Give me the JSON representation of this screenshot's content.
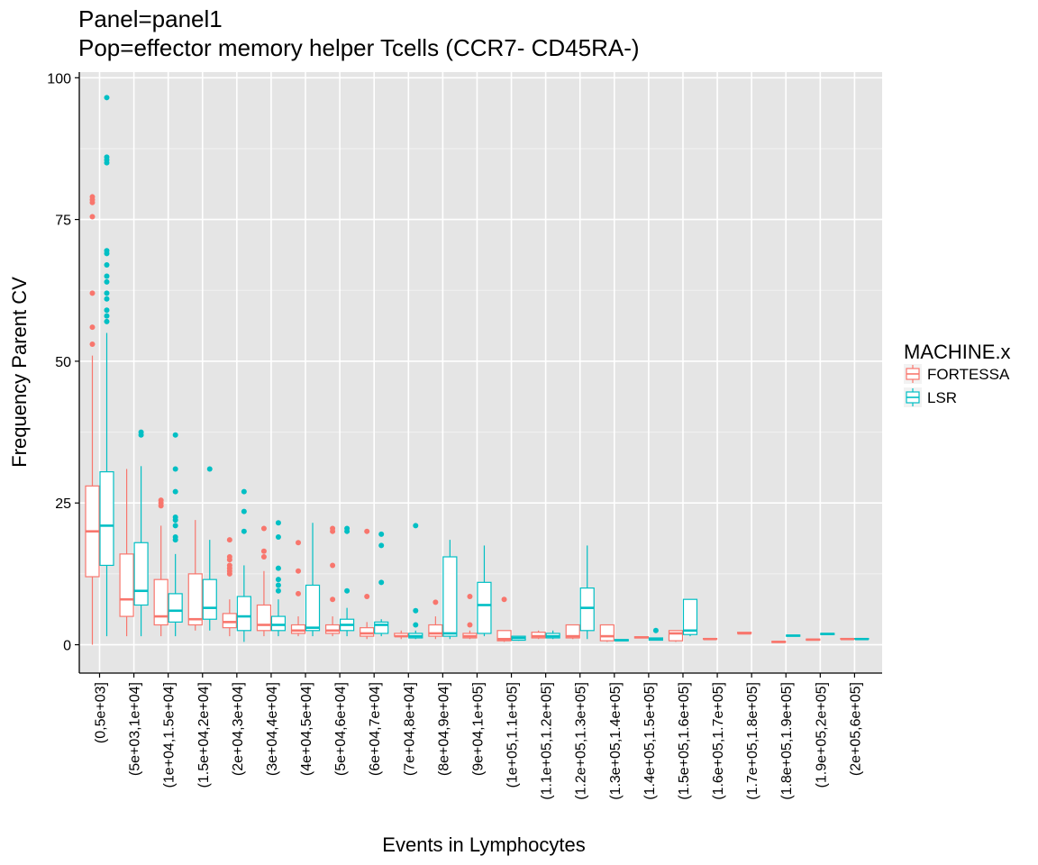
{
  "chart_data": {
    "type": "boxplot",
    "title_line1": "Panel=panel1",
    "title_line2": "Pop=effector memory helper Tcells (CCR7- CD45RA-)",
    "xlabel": "Events in Lymphocytes",
    "ylabel": "Frequency Parent CV",
    "ylim": [
      -5,
      101
    ],
    "yticks": [
      0,
      25,
      50,
      75,
      100
    ],
    "grid": true,
    "legend": {
      "title": "MACHINE.x",
      "placement": "right"
    },
    "colors": {
      "FORTESSA": "#F8766D",
      "LSR": "#00BFC4",
      "panel_bg": "#E5E5E5",
      "grid": "#FFFFFF"
    },
    "categories": [
      "(0,5e+03]",
      "(5e+03,1e+04]",
      "(1e+04,1.5e+04]",
      "(1.5e+04,2e+04]",
      "(2e+04,3e+04]",
      "(3e+04,4e+04]",
      "(4e+04,5e+04]",
      "(5e+04,6e+04]",
      "(6e+04,7e+04]",
      "(7e+04,8e+04]",
      "(8e+04,9e+04]",
      "(9e+04,1e+05]",
      "(1e+05,1.1e+05]",
      "(1.1e+05,1.2e+05]",
      "(1.2e+05,1.3e+05]",
      "(1.3e+05,1.4e+05]",
      "(1.4e+05,1.5e+05]",
      "(1.5e+05,1.6e+05]",
      "(1.6e+05,1.7e+05]",
      "(1.7e+05,1.8e+05]",
      "(1.8e+05,1.9e+05]",
      "(1.9e+05,2e+05]",
      "(2e+05,6e+05]"
    ],
    "series": [
      {
        "name": "FORTESSA",
        "boxes": [
          {
            "cat": 0,
            "min": 0,
            "q1": 12,
            "median": 20,
            "q3": 28,
            "max": 51,
            "outliers": [
              53,
              56,
              62,
              75.5,
              78,
              78.5,
              79
            ]
          },
          {
            "cat": 1,
            "min": 1.5,
            "q1": 5,
            "median": 8,
            "q3": 16,
            "max": 31,
            "outliers": []
          },
          {
            "cat": 2,
            "min": 1.5,
            "q1": 3.5,
            "median": 5,
            "q3": 11.5,
            "max": 21,
            "outliers": [
              24.5,
              25,
              25.5
            ]
          },
          {
            "cat": 3,
            "min": 2.5,
            "q1": 3.5,
            "median": 4.5,
            "q3": 12.5,
            "max": 22,
            "outliers": []
          },
          {
            "cat": 4,
            "min": 1.5,
            "q1": 3,
            "median": 4,
            "q3": 5.5,
            "max": 8,
            "outliers": [
              12.5,
              13,
              13.5,
              14,
              15,
              15.5,
              18.5
            ]
          },
          {
            "cat": 5,
            "min": 1.5,
            "q1": 2.5,
            "median": 3.5,
            "q3": 7,
            "max": 13,
            "outliers": [
              15.5,
              16.5,
              20.5
            ]
          },
          {
            "cat": 6,
            "min": 1.5,
            "q1": 2,
            "median": 2.5,
            "q3": 3.5,
            "max": 5,
            "outliers": [
              9,
              13,
              18
            ]
          },
          {
            "cat": 7,
            "min": 1.5,
            "q1": 2,
            "median": 2.5,
            "q3": 3.5,
            "max": 5,
            "outliers": [
              8,
              14,
              20,
              20.5
            ]
          },
          {
            "cat": 8,
            "min": 1,
            "q1": 1.5,
            "median": 2,
            "q3": 3,
            "max": 4,
            "outliers": [
              8.5,
              20
            ]
          },
          {
            "cat": 9,
            "min": 1,
            "q1": 1.5,
            "median": 1.5,
            "q3": 2,
            "max": 2.5,
            "outliers": []
          },
          {
            "cat": 10,
            "min": 1,
            "q1": 1.5,
            "median": 2,
            "q3": 3.5,
            "max": 5,
            "outliers": [
              7.5
            ]
          },
          {
            "cat": 11,
            "min": 1,
            "q1": 1.2,
            "median": 1.5,
            "q3": 2,
            "max": 2.5,
            "outliers": [
              3.5,
              8.5
            ]
          },
          {
            "cat": 12,
            "min": 0.5,
            "q1": 0.7,
            "median": 1,
            "q3": 2.5,
            "max": 2.5,
            "outliers": [
              8
            ]
          },
          {
            "cat": 13,
            "min": 1,
            "q1": 1.2,
            "median": 1.5,
            "q3": 2.2,
            "max": 2.5,
            "outliers": []
          },
          {
            "cat": 14,
            "min": 1,
            "q1": 1.2,
            "median": 1.5,
            "q3": 3.5,
            "max": 3.5,
            "outliers": []
          },
          {
            "cat": 15,
            "min": 0.5,
            "q1": 0.7,
            "median": 1.5,
            "q3": 3.5,
            "max": 3.5,
            "outliers": []
          },
          {
            "cat": 16,
            "min": 1.2,
            "q1": 1.2,
            "median": 1.3,
            "q3": 1.4,
            "max": 1.4,
            "outliers": []
          },
          {
            "cat": 17,
            "min": 0.5,
            "q1": 0.7,
            "median": 2,
            "q3": 2.5,
            "max": 2.5,
            "outliers": []
          },
          {
            "cat": 18,
            "min": 1,
            "q1": 1,
            "median": 1,
            "q3": 1.1,
            "max": 1.1,
            "outliers": []
          },
          {
            "cat": 19,
            "min": 2,
            "q1": 2,
            "median": 2,
            "q3": 2.2,
            "max": 2.2,
            "outliers": []
          },
          {
            "cat": 20,
            "min": 0.4,
            "q1": 0.4,
            "median": 0.5,
            "q3": 0.6,
            "max": 0.6,
            "outliers": []
          },
          {
            "cat": 21,
            "min": 0.8,
            "q1": 0.8,
            "median": 0.9,
            "q3": 1,
            "max": 1,
            "outliers": []
          },
          {
            "cat": 22,
            "min": 1,
            "q1": 1,
            "median": 1,
            "q3": 1.1,
            "max": 1.1,
            "outliers": []
          }
        ]
      },
      {
        "name": "LSR",
        "boxes": [
          {
            "cat": 0,
            "min": 1.5,
            "q1": 14,
            "median": 21,
            "q3": 30.5,
            "max": 55,
            "outliers": [
              57,
              58,
              59,
              61,
              62,
              64,
              65,
              67,
              69,
              69.5,
              85,
              85.5,
              86,
              96.5
            ]
          },
          {
            "cat": 1,
            "min": 1.5,
            "q1": 7,
            "median": 9.5,
            "q3": 18,
            "max": 31.5,
            "outliers": [
              37,
              37.5
            ]
          },
          {
            "cat": 2,
            "min": 1.5,
            "q1": 4,
            "median": 6,
            "q3": 9,
            "max": 16,
            "outliers": [
              18.5,
              19,
              21,
              22,
              22.5,
              27,
              31,
              37
            ]
          },
          {
            "cat": 3,
            "min": 2.5,
            "q1": 4.5,
            "median": 6.5,
            "q3": 11.5,
            "max": 18.5,
            "outliers": [
              31
            ]
          },
          {
            "cat": 4,
            "min": 0.5,
            "q1": 2.5,
            "median": 5,
            "q3": 8.5,
            "max": 14,
            "outliers": [
              20,
              23.5,
              27
            ]
          },
          {
            "cat": 5,
            "min": 1.5,
            "q1": 2.5,
            "median": 3.5,
            "q3": 5,
            "max": 8,
            "outliers": [
              9.5,
              10.5,
              11.5,
              13.5,
              19,
              21.5
            ]
          },
          {
            "cat": 6,
            "min": 1.5,
            "q1": 2.5,
            "median": 3,
            "q3": 10.5,
            "max": 21.5,
            "outliers": []
          },
          {
            "cat": 7,
            "min": 1.5,
            "q1": 2.5,
            "median": 3.5,
            "q3": 4.5,
            "max": 6.5,
            "outliers": [
              9.5,
              20,
              20.5
            ]
          },
          {
            "cat": 8,
            "min": 1.5,
            "q1": 2,
            "median": 3.5,
            "q3": 4,
            "max": 4.5,
            "outliers": [
              11,
              17.5,
              19.5
            ]
          },
          {
            "cat": 9,
            "min": 1,
            "q1": 1.2,
            "median": 1.5,
            "q3": 2,
            "max": 2.5,
            "outliers": [
              3.5,
              6,
              21
            ]
          },
          {
            "cat": 10,
            "min": 1,
            "q1": 1.5,
            "median": 2,
            "q3": 15.5,
            "max": 18.5,
            "outliers": []
          },
          {
            "cat": 11,
            "min": 1.5,
            "q1": 2,
            "median": 7,
            "q3": 11,
            "max": 17.5,
            "outliers": []
          },
          {
            "cat": 12,
            "min": 0.7,
            "q1": 0.8,
            "median": 1.2,
            "q3": 1.5,
            "max": 1.5,
            "outliers": []
          },
          {
            "cat": 13,
            "min": 1,
            "q1": 1.2,
            "median": 1.5,
            "q3": 2,
            "max": 2.5,
            "outliers": []
          },
          {
            "cat": 14,
            "min": 1,
            "q1": 2.5,
            "median": 6.5,
            "q3": 10,
            "max": 17.5,
            "outliers": []
          },
          {
            "cat": 15,
            "min": 0.7,
            "q1": 0.7,
            "median": 0.8,
            "q3": 0.9,
            "max": 0.9,
            "outliers": []
          },
          {
            "cat": 16,
            "min": 0.8,
            "q1": 0.8,
            "median": 1,
            "q3": 1.2,
            "max": 1.2,
            "outliers": [
              2.5
            ]
          },
          {
            "cat": 17,
            "min": 1.5,
            "q1": 1.8,
            "median": 2.5,
            "q3": 8,
            "max": 8,
            "outliers": []
          },
          {
            "cat": 20,
            "min": 1.5,
            "q1": 1.5,
            "median": 1.6,
            "q3": 1.7,
            "max": 1.7,
            "outliers": []
          },
          {
            "cat": 21,
            "min": 1.8,
            "q1": 1.8,
            "median": 1.9,
            "q3": 2,
            "max": 2,
            "outliers": []
          },
          {
            "cat": 22,
            "min": 1,
            "q1": 1,
            "median": 1,
            "q3": 1.1,
            "max": 1.1,
            "outliers": []
          }
        ]
      }
    ]
  }
}
